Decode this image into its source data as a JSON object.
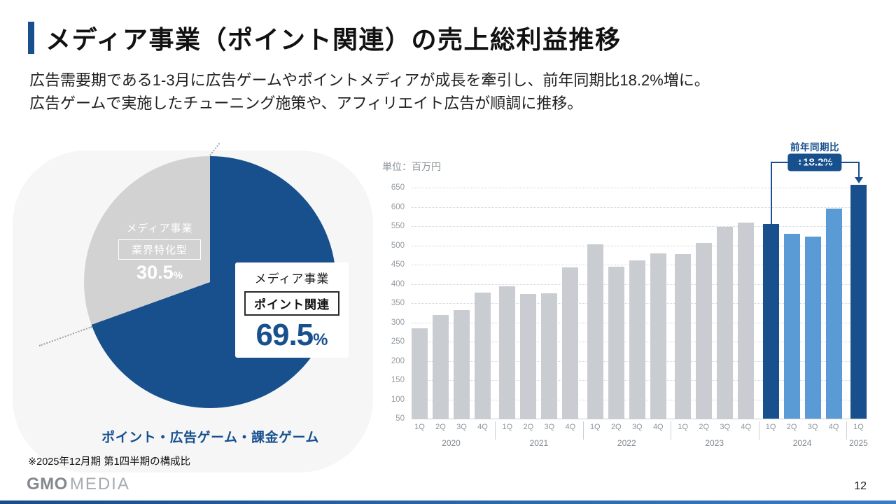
{
  "slide": {
    "title": "メディア事業（ポイント関連）の売上総利益推移",
    "lead_lines": [
      "広告需要期である1-3月に広告ゲームやポイントメディアが成長を牽引し、前年同期比18.2%増に。",
      "広告ゲームで実施したチューニング施策や、アフィリエイト広告が順調に推移。"
    ],
    "page_number": "12",
    "logo": {
      "bold": "GMO",
      "light": "MEDIA"
    },
    "accent_color": "#17508d"
  },
  "chart_data": [
    {
      "type": "pie",
      "start_angle": "top",
      "direction": "clockwise",
      "slices": [
        {
          "label_line1": "メディア事業",
          "label_box": "ポイント関連",
          "value_pct": 69.5,
          "display_value": "69.5",
          "unit": "%",
          "color": "#17508d"
        },
        {
          "label_line1": "メディア事業",
          "label_box": "業界特化型",
          "value_pct": 30.5,
          "display_value": "30.5",
          "unit": "%",
          "color": "#d2d2d2"
        }
      ],
      "caption": "ポイント・広告ゲーム・課金ゲーム",
      "note": "※2025年12月期 第1四半期の構成比"
    },
    {
      "type": "bar",
      "unit_label": "単位：百万円",
      "ylim": [
        50,
        650
      ],
      "ytick_step": 50,
      "grid": "dotted-horizontal",
      "legend": "none",
      "palette": {
        "past": "#c9cdd2",
        "recent": "#5b9bd5",
        "highlight": "#17508d"
      },
      "groups": [
        {
          "year": "2020",
          "quarters": [
            "1Q",
            "2Q",
            "3Q",
            "4Q"
          ],
          "values": [
            285,
            320,
            332,
            378
          ],
          "colors": [
            "past",
            "past",
            "past",
            "past"
          ]
        },
        {
          "year": "2021",
          "quarters": [
            "1Q",
            "2Q",
            "3Q",
            "4Q"
          ],
          "values": [
            394,
            374,
            376,
            442
          ],
          "colors": [
            "past",
            "past",
            "past",
            "past"
          ]
        },
        {
          "year": "2022",
          "quarters": [
            "1Q",
            "2Q",
            "3Q",
            "4Q"
          ],
          "values": [
            503,
            444,
            461,
            480
          ],
          "colors": [
            "past",
            "past",
            "past",
            "past"
          ]
        },
        {
          "year": "2023",
          "quarters": [
            "1Q",
            "2Q",
            "3Q",
            "4Q"
          ],
          "values": [
            477,
            507,
            548,
            560
          ],
          "colors": [
            "past",
            "past",
            "past",
            "past"
          ]
        },
        {
          "year": "2024",
          "quarters": [
            "1Q",
            "2Q",
            "3Q",
            "4Q"
          ],
          "values": [
            556,
            530,
            522,
            595
          ],
          "colors": [
            "highlight",
            "recent",
            "recent",
            "recent"
          ]
        },
        {
          "year": "2025",
          "quarters": [
            "1Q"
          ],
          "values": [
            657
          ],
          "colors": [
            "highlight"
          ]
        }
      ],
      "annotation": {
        "label": "前年同期比",
        "badge": "+18.2%",
        "from": {
          "year": "2024",
          "quarter": "1Q"
        },
        "to": {
          "year": "2025",
          "quarter": "1Q"
        }
      }
    }
  ]
}
